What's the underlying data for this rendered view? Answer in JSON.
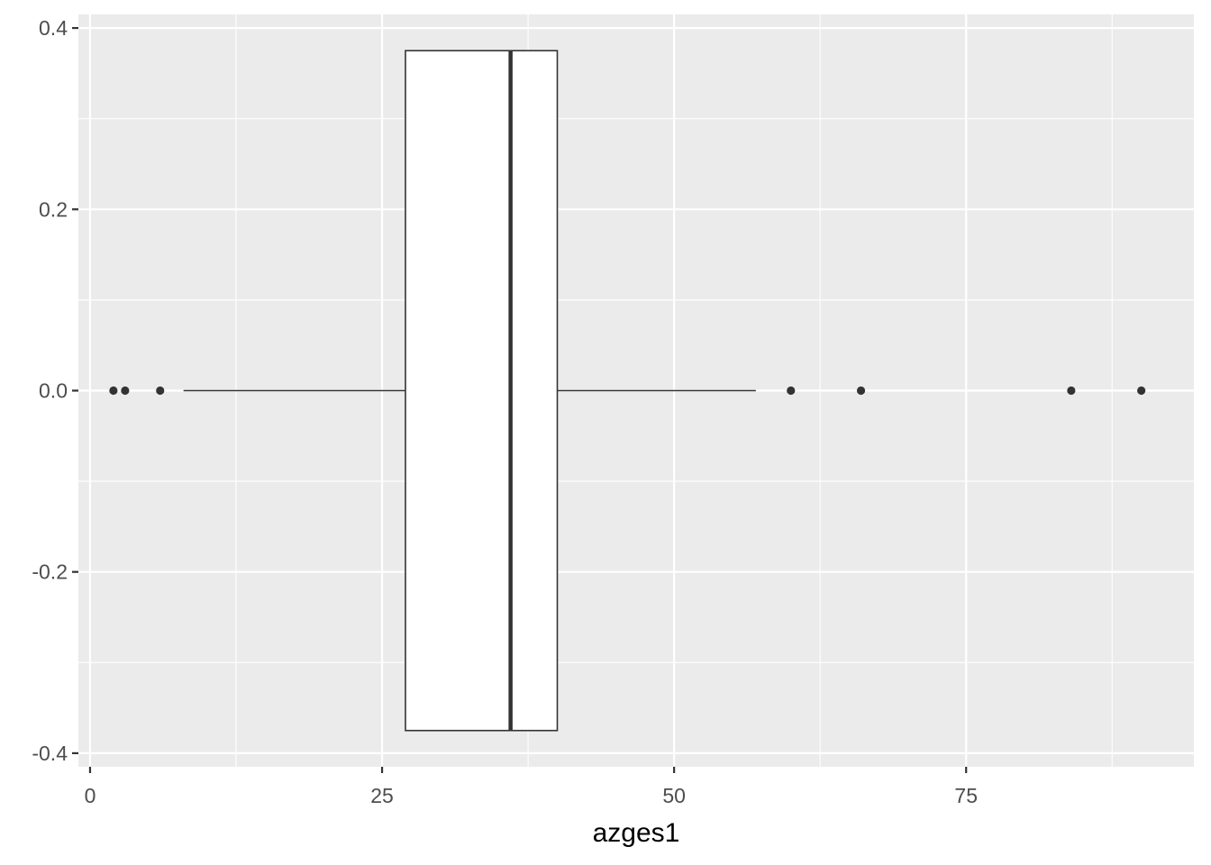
{
  "chart_data": {
    "type": "boxplot",
    "orientation": "horizontal",
    "title": "",
    "xlabel": "azges1",
    "ylabel": "",
    "xlim": [
      -1.0,
      94.5
    ],
    "ylim": [
      -0.415,
      0.415
    ],
    "x_ticks": [
      0,
      25,
      50,
      75
    ],
    "x_tick_labels": [
      "0",
      "25",
      "50",
      "75"
    ],
    "y_ticks": [
      0.4,
      0.2,
      0.0,
      -0.2,
      -0.4
    ],
    "y_tick_labels": [
      "0.4",
      "0.2",
      "0.0",
      "-0.2",
      "-0.4"
    ],
    "grid": true,
    "legend": "none",
    "box": {
      "y_center": 0.0,
      "y_halfwidth": 0.375,
      "whisker_low": 8,
      "q1": 27,
      "median": 36,
      "q3": 40,
      "whisker_high": 57
    },
    "outliers": [
      2,
      3,
      6,
      60,
      66,
      84,
      90
    ],
    "colors": {
      "panel_background": "#ebebeb",
      "grid": "#ffffff",
      "box_fill": "#ffffff",
      "box_line": "#333333",
      "outlier": "#333333",
      "tick_label": "#4d4d4d",
      "axis_title": "#000000"
    }
  }
}
